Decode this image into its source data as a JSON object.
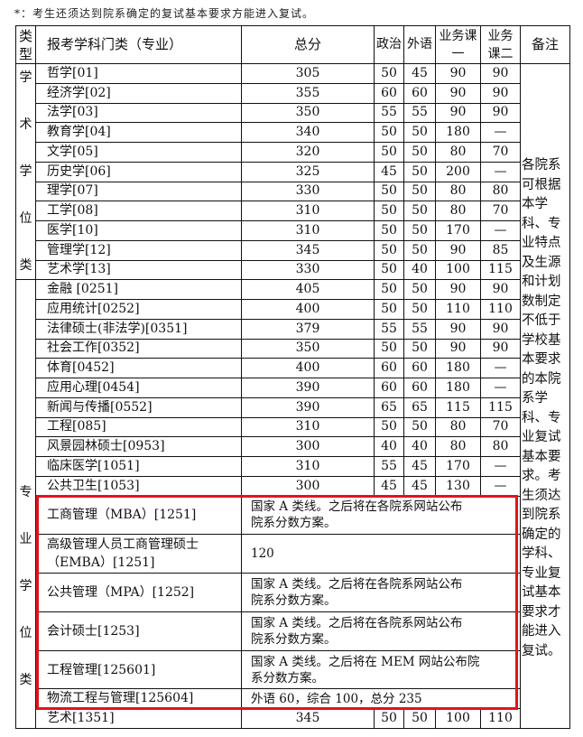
{
  "footnote": "*：考生还须达到院系确定的复试基本要求方能进入复试。",
  "headers": [
    "类型",
    "报考学科门类（专业）",
    "总分",
    "政治",
    "外语",
    "业务课一",
    "业务课二",
    "备注"
  ],
  "header_display": {
    "type": "类\n型",
    "c1": "业务课\n一",
    "c2": "业务\n课二"
  },
  "groups": [
    {
      "label": "学\n\n术\n\n学\n\n位\n\n类",
      "rows": [
        {
          "subject": "哲学[01]",
          "total": "305",
          "politics": "50",
          "language": "45",
          "course1": "90",
          "course2": "90"
        },
        {
          "subject": "经济学[02]",
          "total": "355",
          "politics": "60",
          "language": "60",
          "course1": "90",
          "course2": "90"
        },
        {
          "subject": "法学[03]",
          "total": "350",
          "politics": "55",
          "language": "55",
          "course1": "90",
          "course2": "90"
        },
        {
          "subject": "教育学[04]",
          "total": "340",
          "politics": "50",
          "language": "50",
          "course1": "180",
          "course2": "—"
        },
        {
          "subject": "文学[05]",
          "total": "320",
          "politics": "50",
          "language": "50",
          "course1": "80",
          "course2": "70"
        },
        {
          "subject": "历史学[06]",
          "total": "325",
          "politics": "45",
          "language": "50",
          "course1": "200",
          "course2": "—"
        },
        {
          "subject": "理学[07]",
          "total": "330",
          "politics": "50",
          "language": "50",
          "course1": "80",
          "course2": "80"
        },
        {
          "subject": "工学[08]",
          "total": "310",
          "politics": "50",
          "language": "50",
          "course1": "80",
          "course2": "70"
        },
        {
          "subject": "医学[10]",
          "total": "310",
          "politics": "50",
          "language": "50",
          "course1": "170",
          "course2": "—"
        },
        {
          "subject": "管理学[12]",
          "total": "345",
          "politics": "50",
          "language": "50",
          "course1": "90",
          "course2": "85"
        },
        {
          "subject": "艺术学[13]",
          "total": "330",
          "politics": "50",
          "language": "40",
          "course1": "100",
          "course2": "115"
        }
      ]
    },
    {
      "label": "\n\n\n\n\n\n\n专\n\n业\n\n学\n\n位\n\n类",
      "rows": [
        {
          "subject": "金融 [0251]",
          "total": "405",
          "politics": "50",
          "language": "50",
          "course1": "90",
          "course2": "90"
        },
        {
          "subject": "应用统计[0252]",
          "total": "400",
          "politics": "50",
          "language": "50",
          "course1": "110",
          "course2": "110"
        },
        {
          "subject": "法律硕士(非法学)[0351]",
          "total": "379",
          "politics": "55",
          "language": "55",
          "course1": "90",
          "course2": "90"
        },
        {
          "subject": "社会工作[0352]",
          "total": "350",
          "politics": "50",
          "language": "50",
          "course1": "90",
          "course2": "90"
        },
        {
          "subject": "体育[0452]",
          "total": "400",
          "politics": "60",
          "language": "60",
          "course1": "180",
          "course2": "—"
        },
        {
          "subject": "应用心理[0454]",
          "total": "390",
          "politics": "60",
          "language": "60",
          "course1": "180",
          "course2": "—"
        },
        {
          "subject": "新闻与传播[0552]",
          "total": "390",
          "politics": "65",
          "language": "65",
          "course1": "115",
          "course2": "115"
        },
        {
          "subject": "工程[085]",
          "total": "310",
          "politics": "50",
          "language": "50",
          "course1": "80",
          "course2": "70"
        },
        {
          "subject": "风景园林硕士[0953]",
          "total": "300",
          "politics": "40",
          "language": "40",
          "course1": "80",
          "course2": "80"
        },
        {
          "subject": "临床医学[1051]",
          "total": "310",
          "politics": "55",
          "language": "45",
          "course1": "170",
          "course2": "—"
        },
        {
          "subject": "公共卫生[1053]",
          "total": "300",
          "politics": "45",
          "language": "45",
          "course1": "130",
          "course2": "—"
        },
        {
          "subject": "工商管理（MBA）[1251]",
          "merged": "国家 A 类线。之后将在各院系网站公布\n院系分数方案。",
          "tall": true
        },
        {
          "subject": "高级管理人员工商管理硕士\n（EMBA）[1251]",
          "merged": "120",
          "tall": true
        },
        {
          "subject": "公共管理（MPA）[1252]",
          "merged": "国家 A 类线。之后将在各院系网站公布\n院系分数方案。",
          "tall": true
        },
        {
          "subject": "会计硕士[1253]",
          "merged": "国家 A 类线。之后将在各院系网站公布\n院系分数方案。",
          "tall": true
        },
        {
          "subject": "工程管理[125601]",
          "merged": "国家 A 类线。之后将在 MEM 网站公布院\n系分数方案。",
          "tall": true
        },
        {
          "subject": "物流工程与管理[125604]",
          "merged": "外语 60，综合 100，总分 235"
        },
        {
          "subject": "艺术[1351]",
          "total": "345",
          "politics": "50",
          "language": "50",
          "course1": "100",
          "course2": "110"
        }
      ]
    }
  ],
  "remark": "各院系\n可根据\n本学\n科、专\n业特点\n及生源\n和计划\n数制定\n不低于\n学校基\n本要求\n的本院\n系学\n科、专\n业复试\n基本要\n求。考\n生须达\n到院系\n确定的\n学科、\n专业复\n试基本\n要求才\n能进入\n复试。",
  "highlight_color": "#e0141e"
}
